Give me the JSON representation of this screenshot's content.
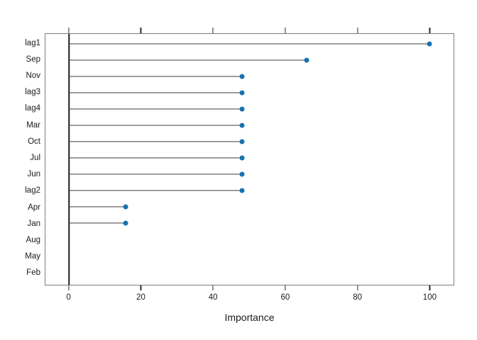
{
  "figure": {
    "background": "#ffffff"
  },
  "chart_data": {
    "type": "scatter",
    "variant": "dotplot-lollipop",
    "title": "",
    "xlabel": "Importance",
    "ylabel": "",
    "categories": [
      "lag1",
      "Sep",
      "Nov",
      "lag3",
      "lag4",
      "Mar",
      "Oct",
      "Jul",
      "Jun",
      "lag2",
      "Apr",
      "Jan",
      "Aug",
      "May",
      "Feb"
    ],
    "values": [
      100,
      66,
      48,
      48,
      48,
      48,
      48,
      48,
      48,
      48,
      15.7,
      15.7,
      0,
      0,
      0
    ],
    "point_shown": [
      true,
      true,
      true,
      true,
      true,
      true,
      true,
      true,
      true,
      true,
      true,
      true,
      false,
      false,
      false
    ],
    "x_ticks": [
      0,
      20,
      40,
      60,
      80,
      100
    ],
    "x_tick_labels": [
      "0",
      "20",
      "40",
      "60",
      "80",
      "100"
    ],
    "xlim": [
      -6.6,
      106.8
    ],
    "grid": false,
    "legend": null,
    "zero_reference_line": 0,
    "colors": {
      "point": "#1673b1",
      "stem": "#3d3d3d",
      "box_border": "#7d7d7d",
      "zero_line": "#1c1c1c",
      "tick": "#2a2a2a",
      "text": "#1a1a1a"
    }
  }
}
